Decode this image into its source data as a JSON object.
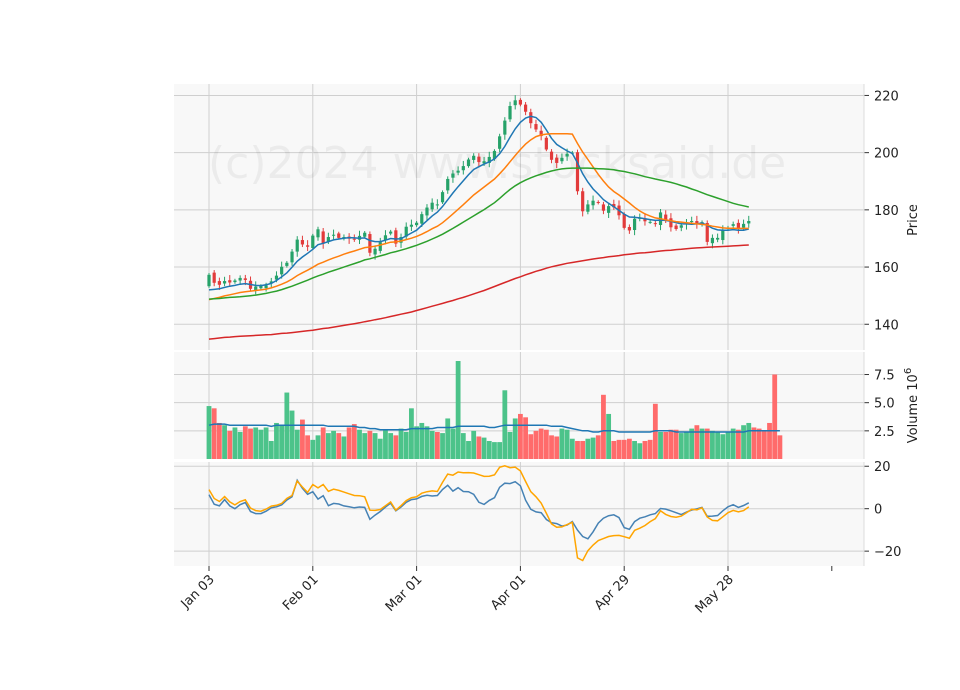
{
  "watermark": "(c)2024 www.stocksaid.de",
  "colors": {
    "panel_bg": "#f8f8f8",
    "grid": "#cfcfcf",
    "up": "#26a269",
    "down": "#e23b3b",
    "up_volume": "#4cc38a",
    "down_volume": "#ff6b6b",
    "volume_ma": "#1f77b4",
    "osc_fast": "#4682b4",
    "osc_slow": "#ffa500"
  },
  "chart_data": [
    {
      "type": "candlestick",
      "panel": "price",
      "ylabel": "Price",
      "ylim": [
        131,
        224
      ],
      "yticks": [
        "140",
        "160",
        "180",
        "200",
        "220"
      ],
      "x_tick_labels": [
        "Jan 03",
        "Feb 01",
        "Mar 01",
        "Apr 01",
        "Apr 29",
        "May 28"
      ],
      "x_tick_index": [
        0,
        20,
        40,
        60,
        80,
        100
      ],
      "grid": true,
      "close": [
        157.3,
        154.5,
        153.8,
        155.1,
        154.6,
        155.3,
        156.2,
        155.5,
        152.4,
        153.2,
        153.4,
        153.6,
        155.0,
        157.0,
        160.1,
        161.5,
        165.4,
        169.6,
        167.9,
        167.1,
        171.0,
        173.2,
        168.2,
        170.5,
        171.3,
        170.2,
        170.5,
        169.9,
        169.7,
        170.9,
        172.0,
        165.0,
        166.4,
        168.7,
        171.1,
        172.4,
        168.2,
        170.5,
        174.1,
        174.8,
        175.5,
        178.5,
        180.8,
        182.5,
        181.9,
        186.2,
        190.8,
        192.7,
        193.7,
        195.3,
        197.6,
        198.9,
        196.7,
        197.0,
        198.5,
        200.6,
        205.7,
        211.2,
        216.3,
        218.3,
        216.8,
        214.3,
        210.3,
        208.1,
        205.8,
        201.1,
        197.5,
        196.4,
        198.2,
        199.6,
        200.0,
        186.5,
        179.5,
        181.9,
        183.2,
        182.5,
        179.7,
        181.3,
        180.9,
        178.1,
        173.7,
        172.8,
        176.9,
        177.2,
        176.0,
        175.8,
        175.3,
        179.1,
        176.3,
        173.9,
        173.3,
        174.6,
        175.6,
        176.1,
        174.9,
        175.7,
        168.8,
        170.2,
        170.2,
        172.8,
        173.8,
        175.0,
        173.5,
        175.1,
        176.1
      ],
      "ohlc_note": "open/high/low derived from close in script",
      "series": [
        {
          "name": "",
          "color": "#1f77b4",
          "values": [
            152.0,
            152.2,
            152.4,
            152.9,
            153.3,
            153.6,
            154.0,
            154.2,
            153.9,
            153.6,
            153.5,
            153.8,
            154.3,
            155.3,
            156.6,
            158.0,
            159.9,
            162.0,
            163.5,
            164.8,
            166.2,
            167.8,
            168.3,
            168.9,
            169.5,
            169.8,
            170.1,
            170.3,
            170.2,
            170.1,
            170.2,
            169.3,
            168.9,
            168.9,
            169.4,
            170.0,
            169.8,
            169.9,
            170.9,
            171.9,
            172.9,
            174.6,
            176.2,
            177.9,
            179.2,
            181.2,
            183.5,
            185.9,
            188.1,
            190.2,
            192.3,
            194.1,
            195.1,
            196.0,
            196.8,
            197.8,
            199.6,
            202.2,
            205.4,
            208.3,
            210.6,
            212.1,
            212.7,
            212.3,
            210.6,
            207.9,
            205.0,
            202.9,
            201.7,
            200.6,
            199.7,
            196.4,
            192.6,
            189.7,
            187.3,
            185.5,
            183.6,
            182.3,
            181.1,
            179.8,
            178.5,
            177.5,
            177.4,
            177.2,
            176.9,
            176.6,
            176.3,
            176.4,
            176.3,
            176.0,
            175.5,
            175.1,
            175.1,
            175.0,
            175.1,
            175.4,
            174.6,
            173.6,
            173.0,
            172.9,
            172.9,
            173.1,
            172.9,
            172.9,
            173.3
          ]
        },
        {
          "name": "",
          "color": "#ff7f0e",
          "values": [
            148.6,
            149.0,
            149.4,
            149.9,
            150.3,
            150.7,
            151.1,
            151.4,
            151.6,
            151.8,
            152.0,
            152.3,
            152.7,
            153.3,
            154.0,
            154.8,
            155.8,
            157.0,
            158.0,
            158.9,
            159.9,
            161.0,
            161.7,
            162.5,
            163.2,
            163.8,
            164.5,
            165.1,
            165.6,
            166.2,
            166.8,
            167.0,
            167.3,
            167.7,
            168.2,
            168.7,
            168.8,
            169.1,
            169.6,
            170.1,
            170.7,
            171.5,
            172.4,
            173.4,
            174.3,
            175.5,
            177.0,
            178.6,
            180.2,
            181.8,
            183.5,
            185.2,
            186.6,
            188.0,
            189.4,
            190.8,
            192.6,
            194.6,
            196.8,
            199.0,
            201.1,
            203.0,
            204.5,
            205.6,
            206.2,
            206.5,
            206.6,
            206.6,
            206.6,
            206.6,
            206.5,
            203.2,
            200.2,
            197.6,
            195.0,
            192.4,
            190.1,
            188.0,
            186.4,
            185.2,
            183.8,
            182.4,
            180.9,
            179.6,
            178.6,
            177.8,
            177.2,
            176.9,
            176.5,
            176.2,
            175.9,
            175.7,
            175.5,
            175.3,
            175.1,
            174.9,
            174.7,
            174.3,
            174.0,
            173.7,
            173.6,
            173.6,
            173.5,
            173.5,
            173.5
          ]
        },
        {
          "name": "",
          "color": "#2ca02c",
          "values": [
            148.8,
            148.9,
            149.0,
            149.2,
            149.4,
            149.5,
            149.6,
            149.8,
            150.0,
            150.2,
            150.5,
            150.8,
            151.2,
            151.6,
            152.1,
            152.7,
            153.3,
            154.0,
            154.7,
            155.4,
            156.2,
            156.9,
            157.5,
            158.2,
            158.8,
            159.4,
            160.0,
            160.6,
            161.2,
            161.8,
            162.5,
            162.9,
            163.4,
            163.9,
            164.4,
            165.0,
            165.4,
            165.9,
            166.4,
            167.0,
            167.6,
            168.3,
            169.0,
            169.8,
            170.6,
            171.5,
            172.5,
            173.5,
            174.6,
            175.7,
            176.8,
            177.9,
            179.0,
            180.1,
            181.3,
            182.5,
            184.0,
            185.6,
            187.1,
            188.4,
            189.5,
            190.4,
            191.2,
            191.9,
            192.5,
            193.1,
            193.6,
            194.0,
            194.3,
            194.5,
            194.6,
            194.6,
            194.6,
            194.6,
            194.5,
            194.4,
            194.3,
            194.2,
            194.0,
            193.7,
            193.4,
            193.0,
            192.6,
            192.1,
            191.6,
            191.2,
            190.8,
            190.4,
            190.0,
            189.6,
            189.1,
            188.5,
            188.0,
            187.3,
            186.7,
            186.0,
            185.3,
            184.7,
            184.1,
            183.5,
            182.9,
            182.3,
            181.8,
            181.4,
            181.0
          ]
        },
        {
          "name": "",
          "color": "#d62728",
          "values": [
            134.8,
            135.0,
            135.2,
            135.4,
            135.5,
            135.7,
            135.8,
            135.9,
            136.0,
            136.1,
            136.2,
            136.3,
            136.4,
            136.6,
            136.8,
            136.9,
            137.1,
            137.3,
            137.5,
            137.7,
            137.9,
            138.2,
            138.5,
            138.7,
            139.0,
            139.3,
            139.6,
            139.9,
            140.2,
            140.5,
            140.9,
            141.2,
            141.6,
            141.9,
            142.3,
            142.7,
            143.1,
            143.5,
            143.9,
            144.3,
            144.8,
            145.3,
            145.8,
            146.3,
            146.8,
            147.3,
            147.8,
            148.3,
            148.9,
            149.4,
            150.0,
            150.6,
            151.2,
            151.8,
            152.5,
            153.2,
            153.9,
            154.6,
            155.3,
            156.0,
            156.6,
            157.3,
            157.9,
            158.5,
            159.0,
            159.6,
            160.1,
            160.5,
            160.9,
            161.3,
            161.6,
            161.9,
            162.2,
            162.5,
            162.8,
            163.1,
            163.3,
            163.6,
            163.8,
            164.0,
            164.3,
            164.5,
            164.7,
            164.9,
            165.0,
            165.2,
            165.4,
            165.6,
            165.8,
            165.9,
            166.1,
            166.2,
            166.4,
            166.6,
            166.7,
            166.8,
            166.9,
            167.0,
            167.1,
            167.2,
            167.3,
            167.4,
            167.5,
            167.6,
            167.7
          ]
        }
      ]
    },
    {
      "type": "bar",
      "panel": "volume",
      "ylabel": "Volume  10^6",
      "ylim": [
        0,
        9.5
      ],
      "yticks": [
        "2.5",
        "5.0",
        "7.5"
      ],
      "grid": true,
      "values": [
        4.7,
        4.5,
        3.2,
        3.0,
        2.5,
        2.8,
        2.4,
        2.9,
        2.7,
        2.8,
        2.6,
        2.8,
        1.6,
        3.2,
        3.0,
        5.9,
        4.3,
        2.6,
        3.5,
        2.1,
        1.7,
        2.1,
        2.8,
        2.3,
        2.5,
        2.3,
        2.0,
        2.8,
        3.1,
        2.6,
        2.3,
        2.5,
        2.3,
        1.8,
        2.6,
        2.3,
        2.1,
        2.7,
        2.4,
        4.5,
        2.9,
        3.2,
        2.9,
        2.5,
        2.4,
        2.3,
        3.6,
        2.7,
        8.7,
        2.3,
        1.6,
        2.5,
        2.0,
        1.9,
        1.6,
        1.5,
        1.5,
        6.1,
        2.4,
        3.6,
        4.0,
        3.7,
        2.2,
        2.5,
        2.7,
        2.6,
        2.1,
        2.0,
        2.7,
        2.6,
        1.8,
        1.6,
        1.6,
        1.8,
        1.9,
        2.1,
        5.7,
        4.0,
        1.6,
        1.7,
        1.7,
        1.8,
        1.6,
        1.4,
        1.6,
        1.7,
        4.9,
        2.4,
        2.4,
        2.6,
        2.6,
        2.3,
        2.4,
        2.7,
        3.0,
        2.7,
        2.7,
        2.5,
        2.4,
        2.2,
        2.4,
        2.7,
        2.6,
        3.0,
        3.2,
        2.8,
        2.7,
        2.5,
        3.2,
        7.5,
        2.1
      ],
      "volume_ma": [
        3.0,
        3.1,
        3.1,
        3.1,
        3.0,
        3.0,
        3.0,
        3.0,
        3.0,
        3.0,
        3.0,
        3.0,
        2.9,
        3.0,
        3.0,
        3.0,
        3.0,
        3.0,
        3.0,
        3.0,
        3.0,
        3.0,
        3.0,
        2.9,
        2.9,
        2.9,
        2.9,
        2.9,
        2.9,
        2.8,
        2.8,
        2.7,
        2.7,
        2.6,
        2.6,
        2.6,
        2.6,
        2.6,
        2.6,
        2.7,
        2.7,
        2.7,
        2.7,
        2.7,
        2.8,
        2.8,
        2.8,
        2.8,
        2.9,
        2.9,
        2.9,
        2.9,
        2.9,
        2.9,
        2.8,
        2.8,
        2.9,
        3.0,
        3.0,
        3.0,
        3.0,
        3.0,
        3.0,
        3.0,
        3.0,
        3.0,
        2.9,
        2.9,
        2.9,
        2.8,
        2.7,
        2.6,
        2.5,
        2.5,
        2.4,
        2.4,
        2.5,
        2.5,
        2.5,
        2.4,
        2.4,
        2.4,
        2.4,
        2.4,
        2.4,
        2.4,
        2.5,
        2.5,
        2.5,
        2.5,
        2.4,
        2.4,
        2.4,
        2.4,
        2.4,
        2.4,
        2.4,
        2.4,
        2.4,
        2.4,
        2.4,
        2.4,
        2.4,
        2.4,
        2.5,
        2.5,
        2.5,
        2.5,
        2.5,
        2.5,
        2.5
      ]
    },
    {
      "type": "line",
      "panel": "oscillator",
      "ylim": [
        -27,
        22
      ],
      "yticks": [
        "20",
        "0",
        "−20"
      ],
      "grid": true,
      "series": [
        {
          "name": "",
          "color": "#4682b4",
          "values": [
            6.6,
            2.1,
            1.3,
            4.3,
            1.3,
            0.0,
            1.9,
            2.9,
            -1.3,
            -2.3,
            -2.3,
            -1.2,
            0.4,
            0.9,
            1.8,
            4.1,
            5.6,
            13.4,
            9.6,
            6.8,
            8.0,
            4.5,
            6.1,
            1.4,
            2.5,
            2.2,
            1.3,
            0.9,
            0.4,
            0.8,
            0.6,
            -5.0,
            -3.0,
            -1.3,
            0.8,
            2.6,
            -1.0,
            0.8,
            3.0,
            4.3,
            4.6,
            5.8,
            6.3,
            6.0,
            6.2,
            9.1,
            11.0,
            8.3,
            9.9,
            8.1,
            8.0,
            6.8,
            3.0,
            2.0,
            3.9,
            5.2,
            10.1,
            12.0,
            11.8,
            12.7,
            10.8,
            4.0,
            -0.3,
            -1.5,
            -1.9,
            -5.1,
            -6.6,
            -7.0,
            -8.2,
            -7.7,
            -6.1,
            -10.1,
            -13.1,
            -14.2,
            -10.9,
            -6.8,
            -4.5,
            -3.3,
            -2.9,
            -4.2,
            -8.9,
            -9.7,
            -6.1,
            -4.5,
            -3.8,
            -2.9,
            -2.3,
            0.1,
            -0.2,
            -1.0,
            -1.9,
            -2.8,
            -1.6,
            -0.6,
            -0.1,
            0.6,
            -3.6,
            -3.5,
            -3.2,
            -1.0,
            0.9,
            1.9,
            0.6,
            1.5,
            2.8
          ]
        },
        {
          "name": "",
          "color": "#ffa500",
          "values": [
            9.0,
            4.8,
            3.4,
            5.7,
            3.2,
            1.8,
            3.4,
            4.2,
            0.3,
            -0.9,
            -1.2,
            -0.2,
            1.2,
            1.6,
            2.5,
            4.9,
            6.2,
            13.0,
            10.2,
            7.7,
            11.4,
            9.8,
            11.4,
            8.2,
            9.2,
            8.6,
            7.8,
            7.0,
            6.2,
            6.1,
            5.6,
            -0.7,
            -0.8,
            -0.4,
            1.4,
            3.2,
            -0.7,
            1.4,
            3.8,
            5.2,
            5.6,
            7.3,
            8.0,
            8.4,
            8.1,
            12.5,
            16.3,
            15.8,
            17.3,
            16.9,
            17.0,
            16.8,
            16.0,
            15.2,
            15.3,
            15.9,
            19.5,
            20.2,
            19.3,
            19.6,
            17.8,
            12.8,
            8.0,
            5.6,
            2.6,
            -2.2,
            -7.1,
            -8.7,
            -8.6,
            -7.5,
            -6.4,
            -23.2,
            -24.4,
            -19.8,
            -17.1,
            -15.0,
            -14.1,
            -13.1,
            -12.7,
            -12.6,
            -13.2,
            -13.9,
            -10.2,
            -9.2,
            -7.9,
            -6.1,
            -4.7,
            -1.0,
            -2.7,
            -3.7,
            -4.0,
            -3.5,
            -1.9,
            -0.3,
            -0.5,
            0.4,
            -3.9,
            -5.5,
            -5.7,
            -3.8,
            -1.9,
            -0.8,
            -1.5,
            -0.9,
            0.9
          ]
        }
      ]
    }
  ]
}
